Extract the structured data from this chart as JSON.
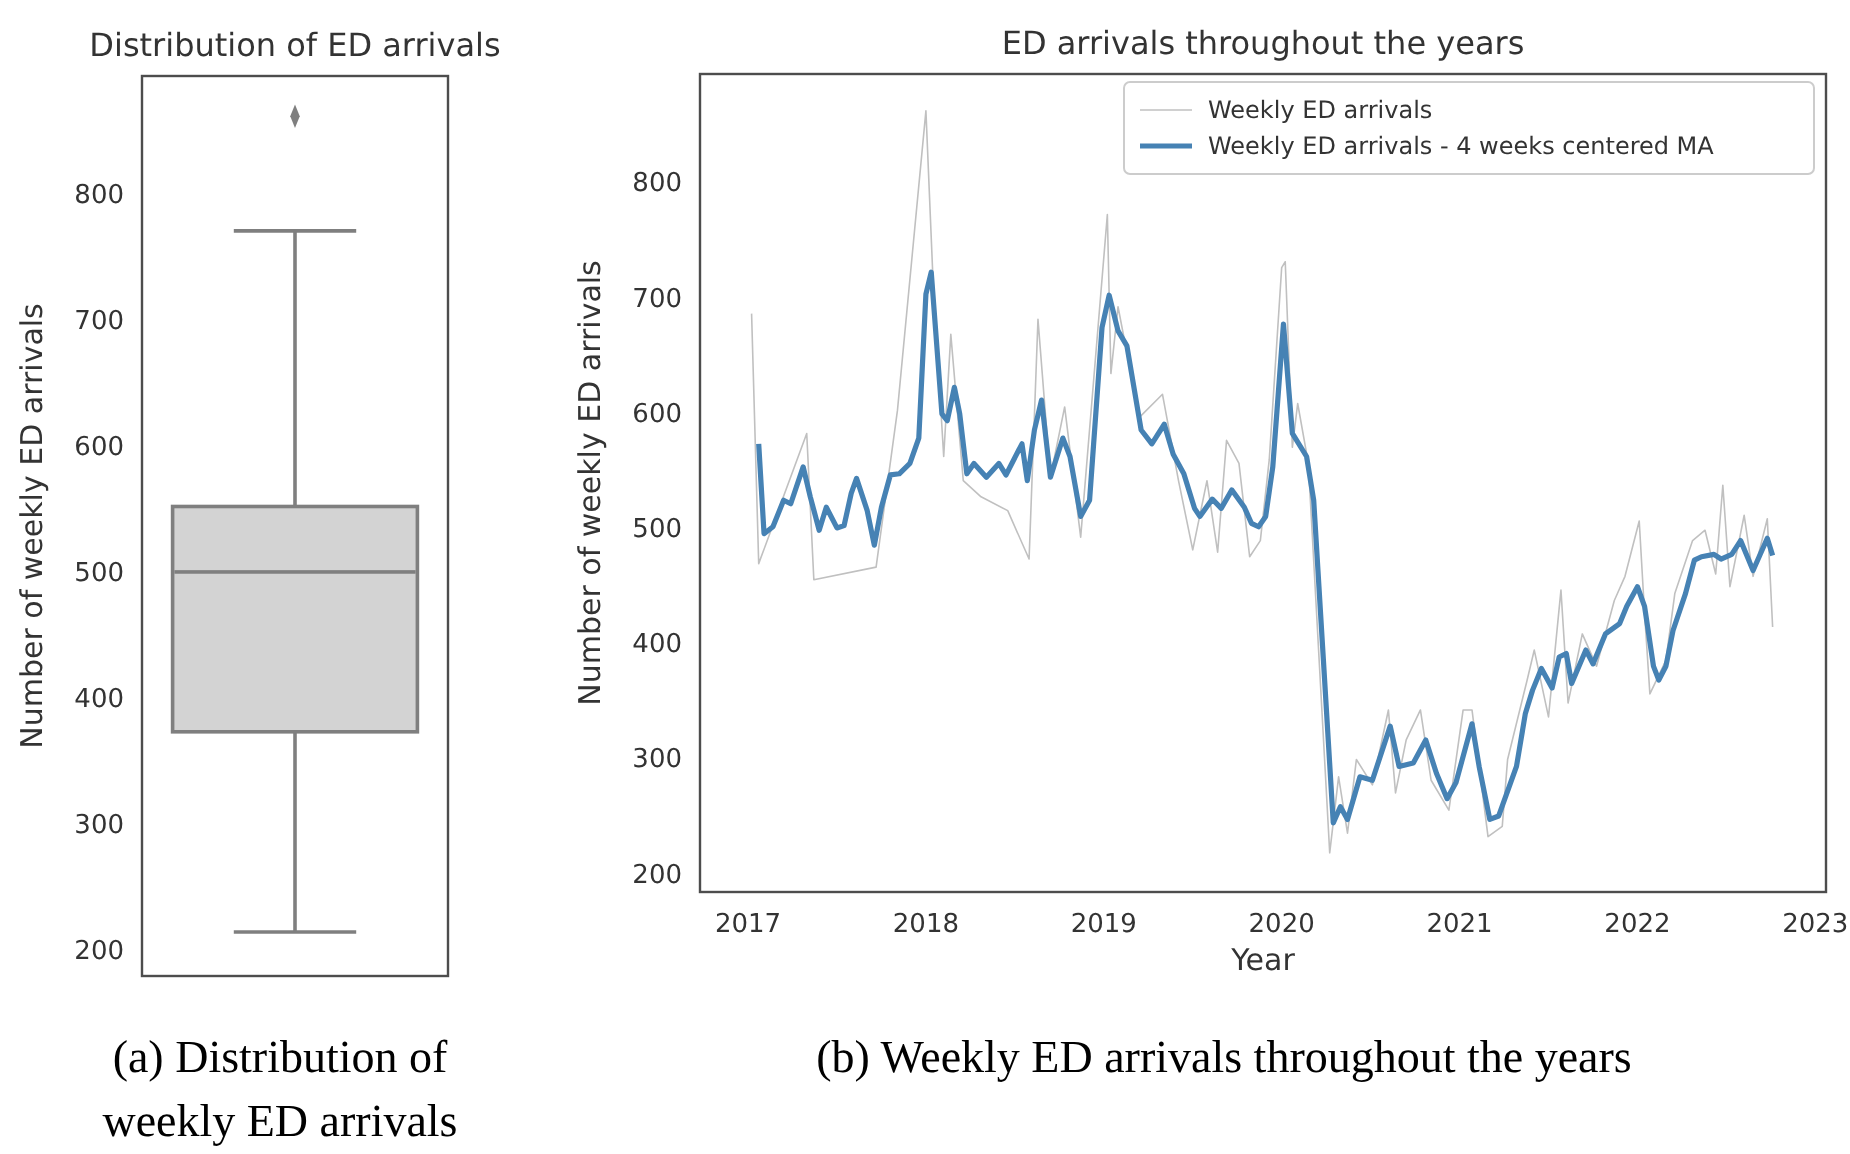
{
  "chart_data": [
    {
      "type": "box",
      "title": "Distribution of ED arrivals",
      "ylabel": "Number of weekly ED arrivals",
      "categories": [
        null
      ],
      "ylim": [
        179,
        894
      ],
      "yticks": [
        200,
        300,
        400,
        500,
        600,
        700,
        800
      ],
      "grid": false,
      "marker": "diamond",
      "series": [
        {
          "color": "#d3d3d3",
          "boxes": [
            {
              "low": 214,
              "q1": 373,
              "median": 500,
              "q3": 552,
              "high": 771,
              "outliers": [
                862
              ]
            }
          ]
        }
      ],
      "annotations": [
        "(a) Distribution of weekly ED arrivals"
      ]
    },
    {
      "type": "line",
      "title": "ED arrivals throughout the years",
      "xlabel": "Year",
      "ylabel": "Number of weekly ED arrivals",
      "xlim": [
        2016.73,
        2023.06
      ],
      "xticks": [
        2017,
        2018,
        2019,
        2020,
        2021,
        2022,
        2023
      ],
      "ylim": [
        184,
        894
      ],
      "yticks": [
        200,
        300,
        400,
        500,
        600,
        700,
        800
      ],
      "grid": false,
      "legend": "top right",
      "marker": "none",
      "line_style": "solid",
      "series": [
        {
          "name": "Weekly ED arrivals",
          "color": "#c0c0c0",
          "x": [
            2017.02,
            2017.06,
            2017.33,
            2017.37,
            2017.72,
            2017.84,
            2018.0,
            2018.04,
            2018.1,
            2018.14,
            2018.21,
            2018.31,
            2018.46,
            2018.58,
            2018.63,
            2018.7,
            2018.78,
            2018.87,
            2019.02,
            2019.04,
            2019.08,
            2019.2,
            2019.33,
            2019.42,
            2019.5,
            2019.58,
            2019.64,
            2019.69,
            2019.76,
            2019.82,
            2019.88,
            2019.93,
            2020.0,
            2020.02,
            2020.06,
            2020.09,
            2020.15,
            2020.27,
            2020.32,
            2020.37,
            2020.42,
            2020.51,
            2020.6,
            2020.64,
            2020.7,
            2020.78,
            2020.84,
            2020.94,
            2021.02,
            2021.07,
            2021.16,
            2021.24,
            2021.27,
            2021.38,
            2021.42,
            2021.5,
            2021.57,
            2021.61,
            2021.69,
            2021.77,
            2021.87,
            2021.93,
            2022.01,
            2022.04,
            2022.07,
            2022.16,
            2022.21,
            2022.31,
            2022.38,
            2022.44,
            2022.48,
            2022.52,
            2022.6,
            2022.65,
            2022.73,
            2022.76
          ],
          "values": [
            686,
            469,
            582,
            455,
            466,
            602,
            862,
            715,
            562,
            668,
            541,
            527,
            515,
            473,
            681,
            544,
            605,
            492,
            772,
            634,
            692,
            596,
            616,
            541,
            481,
            541,
            479,
            576,
            556,
            475,
            489,
            559,
            726,
            731,
            570,
            608,
            556,
            218,
            284,
            235,
            299,
            277,
            342,
            270,
            316,
            342,
            281,
            255,
            342,
            342,
            232,
            241,
            299,
            368,
            394,
            336,
            446,
            348,
            408,
            380,
            437,
            458,
            506,
            426,
            356,
            385,
            443,
            489,
            498,
            460,
            537,
            449,
            511,
            458,
            508,
            414
          ]
        },
        {
          "name": "Weekly ED arrivals - 4 weeks centered MA",
          "color": "#4682b4",
          "x": [
            2017.06,
            2017.09,
            2017.14,
            2017.2,
            2017.24,
            2017.31,
            2017.35,
            2017.4,
            2017.44,
            2017.5,
            2017.54,
            2017.58,
            2017.61,
            2017.67,
            2017.71,
            2017.75,
            2017.8,
            2017.85,
            2017.91,
            2017.96,
            2018.0,
            2018.03,
            2018.09,
            2018.12,
            2018.16,
            2018.19,
            2018.23,
            2018.27,
            2018.34,
            2018.41,
            2018.45,
            2018.54,
            2018.57,
            2018.61,
            2018.65,
            2018.7,
            2018.77,
            2018.81,
            2018.87,
            2018.92,
            2018.99,
            2019.03,
            2019.08,
            2019.13,
            2019.21,
            2019.27,
            2019.34,
            2019.39,
            2019.45,
            2019.51,
            2019.54,
            2019.61,
            2019.66,
            2019.72,
            2019.79,
            2019.83,
            2019.87,
            2019.91,
            2019.95,
            2020.01,
            2020.06,
            2020.14,
            2020.18,
            2020.23,
            2020.29,
            2020.33,
            2020.37,
            2020.44,
            2020.51,
            2020.61,
            2020.66,
            2020.74,
            2020.81,
            2020.87,
            2020.93,
            2020.98,
            2021.07,
            2021.11,
            2021.17,
            2021.22,
            2021.32,
            2021.37,
            2021.41,
            2021.46,
            2021.52,
            2021.56,
            2021.6,
            2021.63,
            2021.71,
            2021.75,
            2021.82,
            2021.9,
            2021.94,
            2022.0,
            2022.04,
            2022.09,
            2022.12,
            2022.16,
            2022.2,
            2022.27,
            2022.32,
            2022.36,
            2022.43,
            2022.47,
            2022.53,
            2022.58,
            2022.65,
            2022.73,
            2022.76
          ],
          "values": [
            573,
            495,
            501,
            524,
            521,
            553,
            527,
            498,
            518,
            500,
            502,
            530,
            543,
            515,
            485,
            518,
            546,
            547,
            556,
            578,
            703,
            722,
            599,
            593,
            622,
            599,
            547,
            556,
            544,
            556,
            546,
            573,
            541,
            585,
            611,
            544,
            578,
            562,
            510,
            524,
            674,
            702,
            671,
            658,
            585,
            573,
            590,
            564,
            547,
            517,
            510,
            525,
            517,
            533,
            518,
            504,
            501,
            510,
            553,
            677,
            582,
            562,
            524,
            397,
            244,
            258,
            247,
            284,
            281,
            328,
            293,
            296,
            316,
            287,
            265,
            279,
            330,
            293,
            247,
            250,
            293,
            339,
            359,
            378,
            361,
            388,
            391,
            365,
            394,
            382,
            408,
            417,
            432,
            449,
            432,
            380,
            368,
            380,
            411,
            443,
            472,
            475,
            477,
            473,
            477,
            489,
            463,
            491,
            476
          ]
        }
      ],
      "annotations": [
        "(b) Weekly ED arrivals throughout the years"
      ]
    }
  ]
}
